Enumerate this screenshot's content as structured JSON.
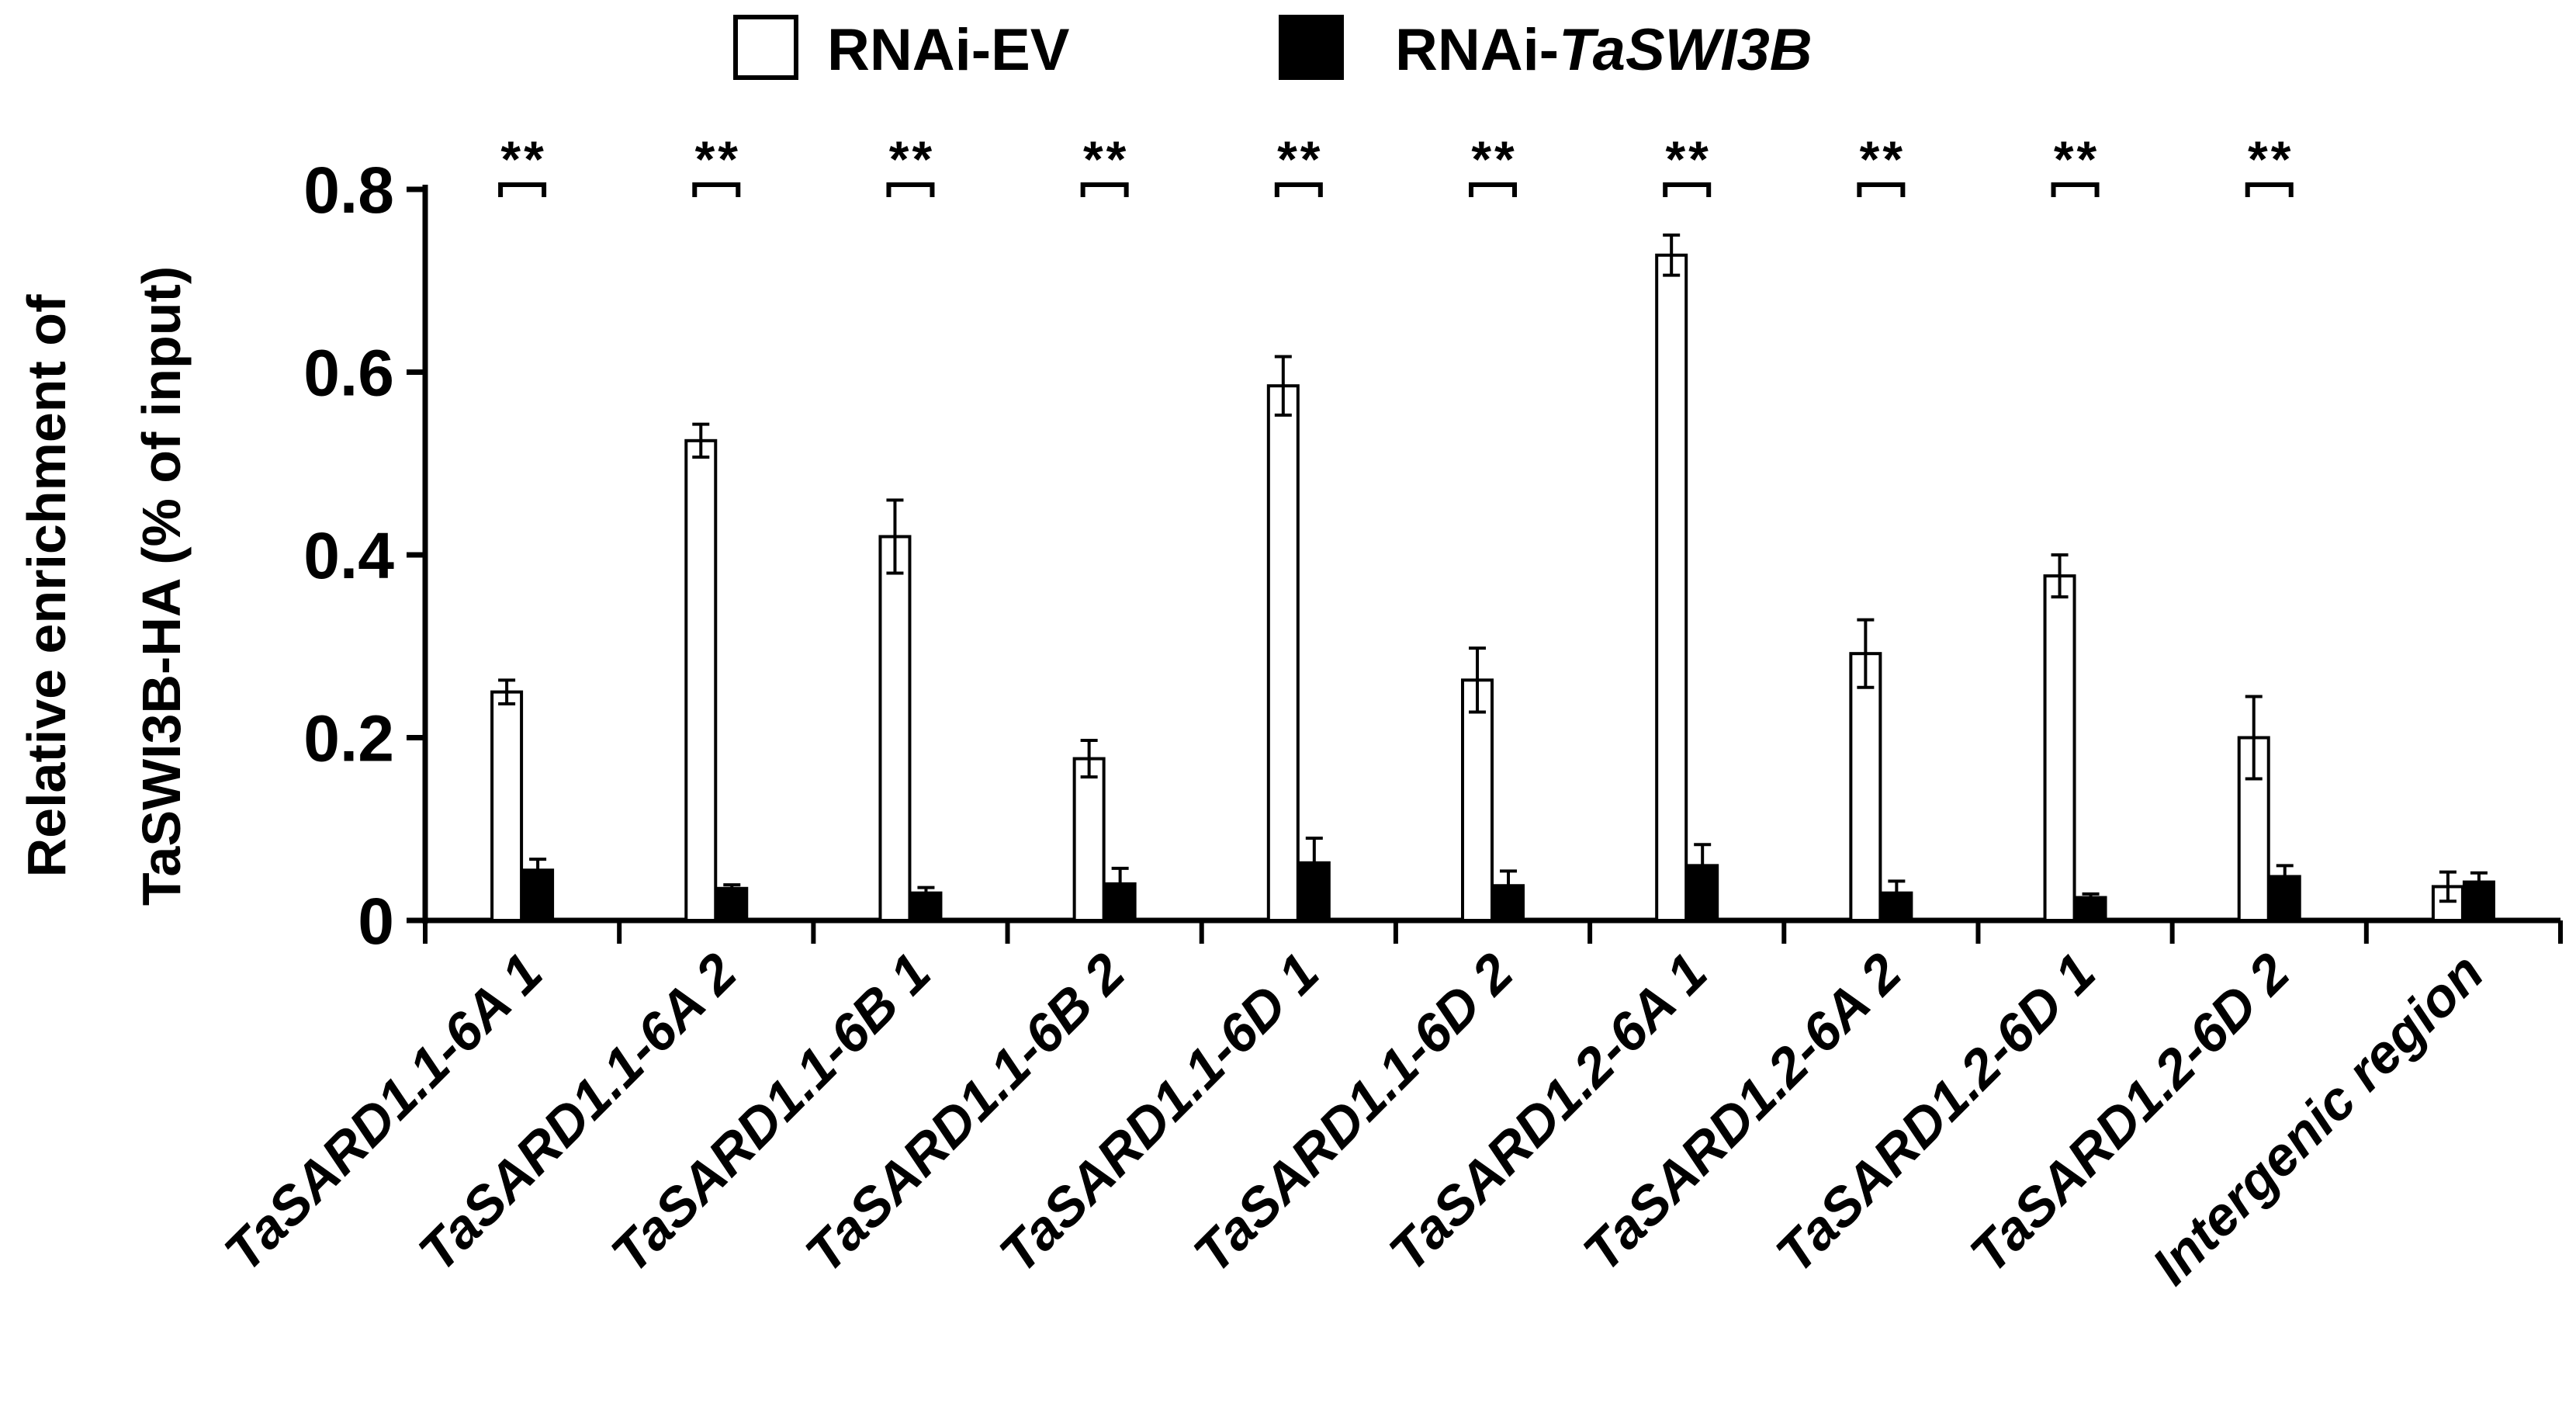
{
  "chart_data": {
    "type": "bar",
    "title": "",
    "ylabel_line1": "Relative enrichment of",
    "ylabel_line2": "TaSWI3B-HA  (% of input)",
    "xlabel": "",
    "ylim": [
      0,
      0.8
    ],
    "yticks": [
      0,
      0.2,
      0.4,
      0.6,
      0.8
    ],
    "ytick_labels": [
      "0",
      "0.2",
      "0.4",
      "0.6",
      "0.8"
    ],
    "categories": [
      "TaSARD1.1-6A 1",
      "TaSARD1.1-6A 2",
      "TaSARD1.1-6B 1",
      "TaSARD1.1-6B 2",
      "TaSARD1.1-6D 1",
      "TaSARD1.1-6D 2",
      "TaSARD1.2-6A 1",
      "TaSARD1.2-6A 2",
      "TaSARD1.2-6D 1",
      "TaSARD1.2-6D 2",
      "Intergenic region"
    ],
    "series": [
      {
        "name": "RNAi-EV",
        "fill": "#ffffff",
        "values": [
          0.25,
          0.525,
          0.42,
          0.177,
          0.585,
          0.263,
          0.728,
          0.292,
          0.377,
          0.2,
          0.037
        ],
        "errors": [
          0.013,
          0.018,
          0.04,
          0.02,
          0.032,
          0.035,
          0.022,
          0.037,
          0.023,
          0.045,
          0.016
        ]
      },
      {
        "name": "RNAi-TaSWI3B",
        "fill": "#000000",
        "values": [
          0.055,
          0.035,
          0.03,
          0.04,
          0.063,
          0.038,
          0.06,
          0.03,
          0.025,
          0.048,
          0.042
        ],
        "errors": [
          0.012,
          0.004,
          0.006,
          0.017,
          0.027,
          0.016,
          0.023,
          0.013,
          0.004,
          0.012,
          0.01
        ]
      }
    ],
    "significance": [
      "**",
      "**",
      "**",
      "**",
      "**",
      "**",
      "**",
      "**",
      "**",
      "**",
      ""
    ],
    "legend": {
      "position": "top-center",
      "items": [
        {
          "prefix": "RNAi-EV",
          "italic": ""
        },
        {
          "prefix": "RNAi-",
          "italic": "TaSWI3B"
        }
      ]
    },
    "grid": false
  }
}
